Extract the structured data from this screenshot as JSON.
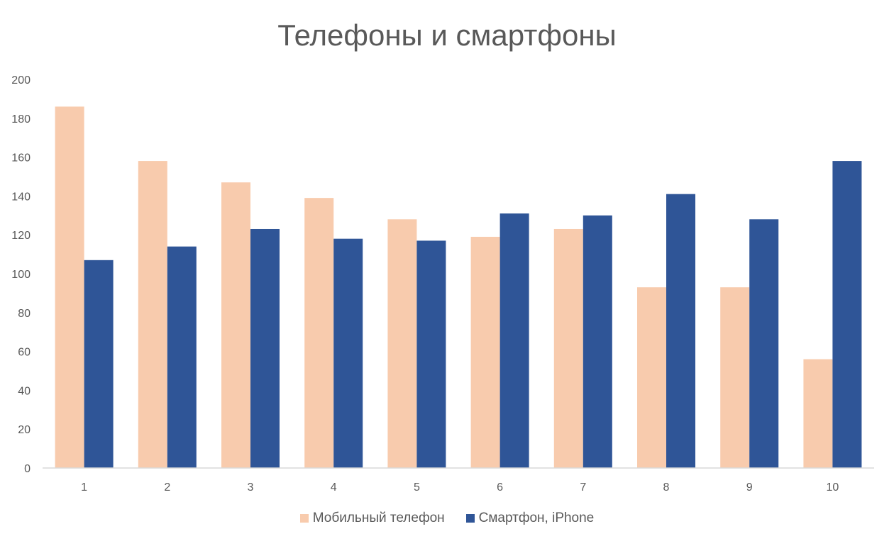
{
  "chart_data": {
    "type": "bar",
    "title": "Телефоны и смартфоны",
    "xlabel": "",
    "ylabel": "",
    "categories": [
      "1",
      "2",
      "3",
      "4",
      "5",
      "6",
      "7",
      "8",
      "9",
      "10"
    ],
    "ylim": [
      0,
      200
    ],
    "yticks": [
      "0",
      "20",
      "40",
      "60",
      "80",
      "100",
      "120",
      "140",
      "160",
      "180",
      "200"
    ],
    "grid": false,
    "legend_position": "bottom",
    "series": [
      {
        "name": "Мобильный телефон",
        "color": "#F8CBAD",
        "values": [
          186,
          158,
          147,
          139,
          128,
          119,
          123,
          93,
          93,
          56
        ]
      },
      {
        "name": "Смартфон, iPhone",
        "color": "#2F5597",
        "values": [
          107,
          114,
          123,
          118,
          117,
          131,
          130,
          141,
          128,
          158
        ]
      }
    ]
  }
}
